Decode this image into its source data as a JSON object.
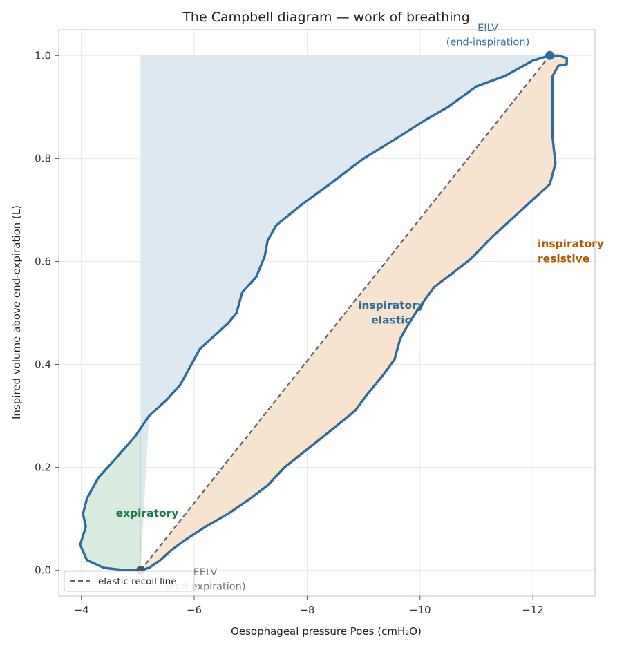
{
  "chart_data": {
    "type": "line",
    "title": "The Campbell diagram — work of breathing",
    "xlabel": "Oesophageal pressure  Poes  (cmH₂O)",
    "ylabel": "Inspired volume above end-expiration  (L)",
    "xlim": [
      -3.6,
      -13.1
    ],
    "ylim": [
      -0.05,
      1.05
    ],
    "x_inverted": true,
    "grid": true,
    "x_ticks": [
      -4,
      -6,
      -8,
      -10,
      -12
    ],
    "x_tick_labels": [
      "−4",
      "−6",
      "−8",
      "−10",
      "−12"
    ],
    "y_ticks": [
      0.0,
      0.2,
      0.4,
      0.6,
      0.8,
      1.0
    ],
    "y_tick_labels": [
      "0.0",
      "0.2",
      "0.4",
      "0.6",
      "0.8",
      "1.0"
    ],
    "chest_wall_pressure": -5.05,
    "loop": {
      "inspiration": [
        [
          -5.05,
          0.0
        ],
        [
          -5.2,
          0.005
        ],
        [
          -5.4,
          0.02
        ],
        [
          -5.6,
          0.04
        ],
        [
          -5.85,
          0.06
        ],
        [
          -6.2,
          0.085
        ],
        [
          -6.6,
          0.11
        ],
        [
          -7.0,
          0.14
        ],
        [
          -7.3,
          0.165
        ],
        [
          -7.6,
          0.2
        ],
        [
          -8.0,
          0.235
        ],
        [
          -8.4,
          0.27
        ],
        [
          -8.85,
          0.31
        ],
        [
          -9.05,
          0.34
        ],
        [
          -9.35,
          0.38
        ],
        [
          -9.55,
          0.41
        ],
        [
          -9.65,
          0.45
        ],
        [
          -9.75,
          0.47
        ],
        [
          -9.95,
          0.505
        ],
        [
          -10.25,
          0.55
        ],
        [
          -10.55,
          0.575
        ],
        [
          -10.9,
          0.605
        ],
        [
          -11.3,
          0.65
        ],
        [
          -11.7,
          0.69
        ],
        [
          -12.0,
          0.72
        ],
        [
          -12.3,
          0.75
        ],
        [
          -12.4,
          0.79
        ],
        [
          -12.35,
          0.84
        ],
        [
          -12.35,
          0.9
        ],
        [
          -12.35,
          0.93
        ],
        [
          -12.35,
          0.96
        ],
        [
          -12.45,
          0.98
        ],
        [
          -12.6,
          0.983
        ],
        [
          -12.6,
          0.995
        ],
        [
          -12.45,
          1.0
        ],
        [
          -12.3,
          1.0
        ]
      ],
      "expiration": [
        [
          -12.3,
          1.0
        ],
        [
          -12.0,
          0.99
        ],
        [
          -11.5,
          0.96
        ],
        [
          -11.0,
          0.94
        ],
        [
          -10.5,
          0.9
        ],
        [
          -10.1,
          0.875
        ],
        [
          -9.6,
          0.84
        ],
        [
          -9.0,
          0.8
        ],
        [
          -8.4,
          0.75
        ],
        [
          -7.9,
          0.71
        ],
        [
          -7.45,
          0.67
        ],
        [
          -7.3,
          0.64
        ],
        [
          -7.25,
          0.61
        ],
        [
          -7.1,
          0.57
        ],
        [
          -6.85,
          0.54
        ],
        [
          -6.75,
          0.5
        ],
        [
          -6.6,
          0.48
        ],
        [
          -6.4,
          0.46
        ],
        [
          -6.1,
          0.43
        ],
        [
          -5.9,
          0.39
        ],
        [
          -5.75,
          0.36
        ],
        [
          -5.5,
          0.33
        ],
        [
          -5.2,
          0.3
        ],
        [
          -4.95,
          0.26
        ],
        [
          -4.75,
          0.235
        ],
        [
          -4.55,
          0.21
        ],
        [
          -4.3,
          0.18
        ],
        [
          -4.1,
          0.14
        ],
        [
          -4.03,
          0.11
        ],
        [
          -4.08,
          0.085
        ],
        [
          -3.98,
          0.05
        ],
        [
          -4.1,
          0.02
        ],
        [
          -4.4,
          0.005
        ],
        [
          -4.8,
          0.0
        ],
        [
          -5.05,
          0.0
        ]
      ],
      "start_point": [
        -5.05,
        0.0
      ],
      "end_point": [
        -12.3,
        1.0
      ]
    },
    "elastic_recoil_line": [
      [
        -5.05,
        0.0
      ],
      [
        -12.3,
        1.0
      ]
    ],
    "series": [
      {
        "name": "elastic recoil line",
        "color": "#5f6670",
        "style": "dashed"
      }
    ],
    "legend_position": "bottom-left",
    "regions": [
      {
        "label": "inspiratory\nelastic",
        "color": "#2f6b96"
      },
      {
        "label": "inspiratory\nresistive",
        "color": "#b05a00"
      },
      {
        "label": "expiratory",
        "color": "#1c7a48"
      }
    ],
    "annotations": [
      {
        "text": "EILV\n(end-inspiration)",
        "color": "#3a6f96"
      },
      {
        "text": "EELV\n(end-expiration)",
        "color": "#6b7886"
      }
    ],
    "colors": {
      "loop": "#2e6b98",
      "elastic_fill": "#dde8f0",
      "resistive_fill": "#f6e3d0",
      "expiratory_fill": "#d8ebdf",
      "grid": "#e6e9ec",
      "spine": "#c8cdd2"
    }
  }
}
